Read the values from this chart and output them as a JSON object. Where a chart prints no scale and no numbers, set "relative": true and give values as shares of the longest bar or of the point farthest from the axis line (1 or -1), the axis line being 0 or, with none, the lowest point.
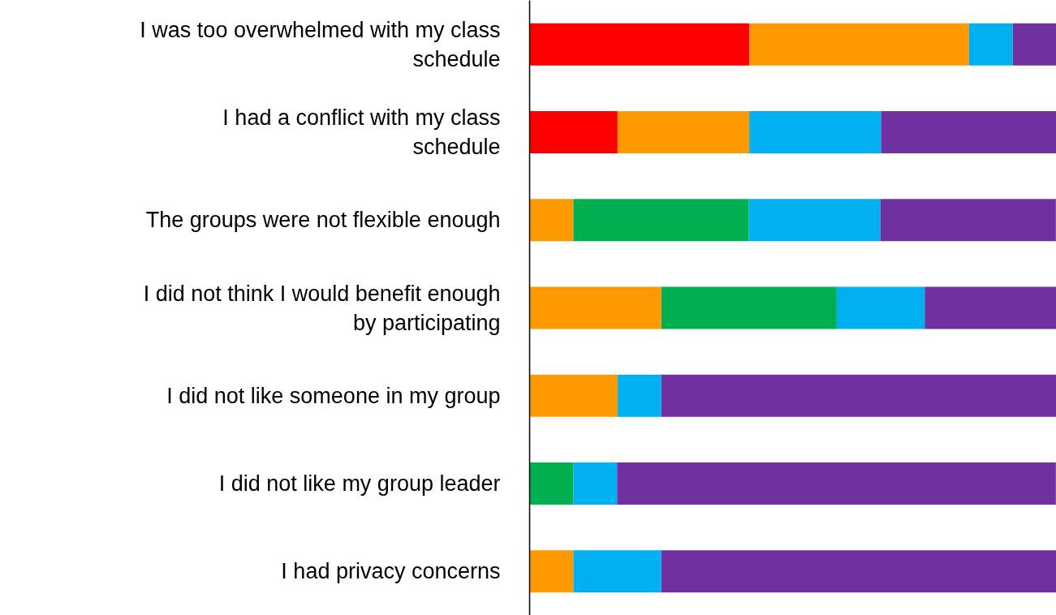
{
  "chart_data": {
    "type": "bar",
    "orientation": "horizontal",
    "stacked": true,
    "relative": true,
    "categories": [
      "I was too overwhelmed with my class schedule",
      "I had a conflict with my class schedule",
      "The groups were not flexible enough",
      "I did not think I would benefit enough by participating",
      "I did not like someone in my group",
      "I did not like my group leader",
      "I had privacy concerns"
    ],
    "series": [
      {
        "color": "#ff0000",
        "values": [
          0.417,
          0.167,
          0,
          0,
          0,
          0,
          0
        ]
      },
      {
        "color": "#ff9900",
        "values": [
          0.417,
          0.25,
          0.083,
          0.25,
          0.167,
          0,
          0.083
        ]
      },
      {
        "color": "#00b050",
        "values": [
          0,
          0,
          0.333,
          0.333,
          0,
          0.083,
          0
        ]
      },
      {
        "color": "#00b0f0",
        "values": [
          0.083,
          0.25,
          0.25,
          0.167,
          0.083,
          0.083,
          0.167
        ]
      },
      {
        "color": "#7030a0",
        "values": [
          0.083,
          0.333,
          0.333,
          0.25,
          0.75,
          0.833,
          0.75
        ]
      }
    ]
  }
}
